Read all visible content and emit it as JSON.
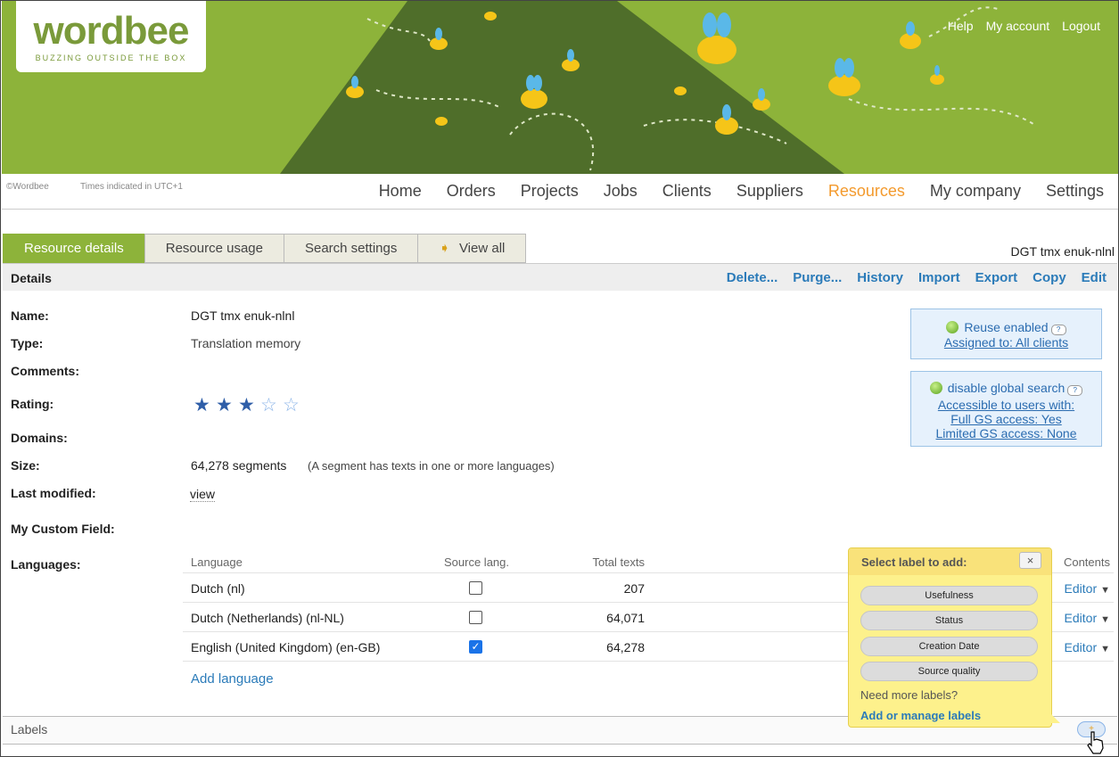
{
  "header": {
    "logo": "wordbee",
    "tagline": "BUZZING OUTSIDE THE BOX",
    "links": [
      "Help",
      "My account",
      "Logout"
    ],
    "copyright": "©Wordbee",
    "timezone": "Times indicated in UTC+1"
  },
  "nav": {
    "items": [
      "Home",
      "Orders",
      "Projects",
      "Jobs",
      "Clients",
      "Suppliers",
      "Resources",
      "My company",
      "Settings"
    ],
    "active": "Resources"
  },
  "tabs": [
    "Resource details",
    "Resource usage",
    "Search settings",
    "View all"
  ],
  "resource_title": "DGT tmx enuk-nlnl",
  "details": {
    "title": "Details",
    "actions": [
      "Delete...",
      "Purge...",
      "History",
      "Import",
      "Export",
      "Copy",
      "Edit"
    ]
  },
  "fields": {
    "name_label": "Name:",
    "name": "DGT tmx enuk-nlnl",
    "type_label": "Type:",
    "type": "Translation memory",
    "comments_label": "Comments:",
    "rating_label": "Rating:",
    "rating": 3,
    "rating_max": 5,
    "domains_label": "Domains:",
    "size_label": "Size:",
    "size": "64,278 segments",
    "size_note": "(A segment has texts in one or more languages)",
    "modified_label": "Last modified:",
    "modified": "view",
    "custom_label": "My Custom Field:",
    "languages_label": "Languages:"
  },
  "boxes": {
    "reuse": "Reuse enabled",
    "assigned": "Assigned to: All clients",
    "gs": "disable global search",
    "access": "Accessible to users with:",
    "full": "Full GS access: Yes",
    "limited": "Limited GS access: None",
    "help": "?"
  },
  "languages": {
    "headers": [
      "Language",
      "Source lang.",
      "Total texts",
      "Contents"
    ],
    "rows": [
      {
        "language": "Dutch (nl)",
        "source": false,
        "total": "207",
        "action": "Editor"
      },
      {
        "language": "Dutch (Netherlands) (nl-NL)",
        "source": false,
        "total": "64,071",
        "action": "Editor"
      },
      {
        "language": "English (United Kingdom) (en-GB)",
        "source": true,
        "total": "64,278",
        "action": "Editor"
      }
    ],
    "add": "Add language"
  },
  "labels": {
    "title": "Labels",
    "popup_title": "Select label to add:",
    "close": "×",
    "options": [
      "Usefulness",
      "Status",
      "Creation Date",
      "Source quality"
    ],
    "need_more": "Need more labels?",
    "manage": "Add or manage labels",
    "add_button": "+"
  },
  "colors": {
    "brand_green": "#8db33a",
    "active_nav": "#f39a2d",
    "link": "#2b7bb9",
    "popup": "#fdf18c"
  }
}
